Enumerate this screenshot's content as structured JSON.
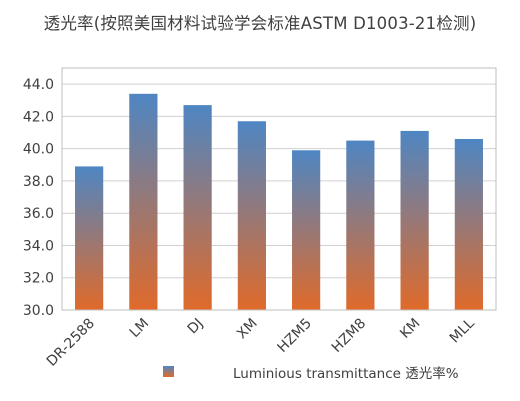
{
  "chart_data": {
    "type": "bar",
    "title": "透光率(按照美国材料试验学会标准ASTM D1003-21检测)",
    "categories": [
      "DR-2588",
      "LM",
      "DJ",
      "XM",
      "HZM5",
      "HZM8",
      "KM",
      "MLL"
    ],
    "series": [
      {
        "name": "Luminious transmittance 透光率%",
        "values": [
          38.9,
          43.4,
          42.7,
          41.7,
          39.9,
          40.5,
          41.1,
          40.6
        ]
      }
    ],
    "ylim": [
      30.0,
      45.0
    ],
    "yticks": [
      "30.0",
      "32.0",
      "34.0",
      "36.0",
      "38.0",
      "40.0",
      "42.0",
      "44.0"
    ],
    "ytick_values": [
      30,
      32,
      34,
      36,
      38,
      40,
      42,
      44
    ],
    "grid": true,
    "legend_position": "bottom",
    "colors": {
      "bar_top": "#4e86c3",
      "bar_bottom": "#e06a2a",
      "grid": "#d0d0d0",
      "axis": "#bfbfbf"
    }
  }
}
